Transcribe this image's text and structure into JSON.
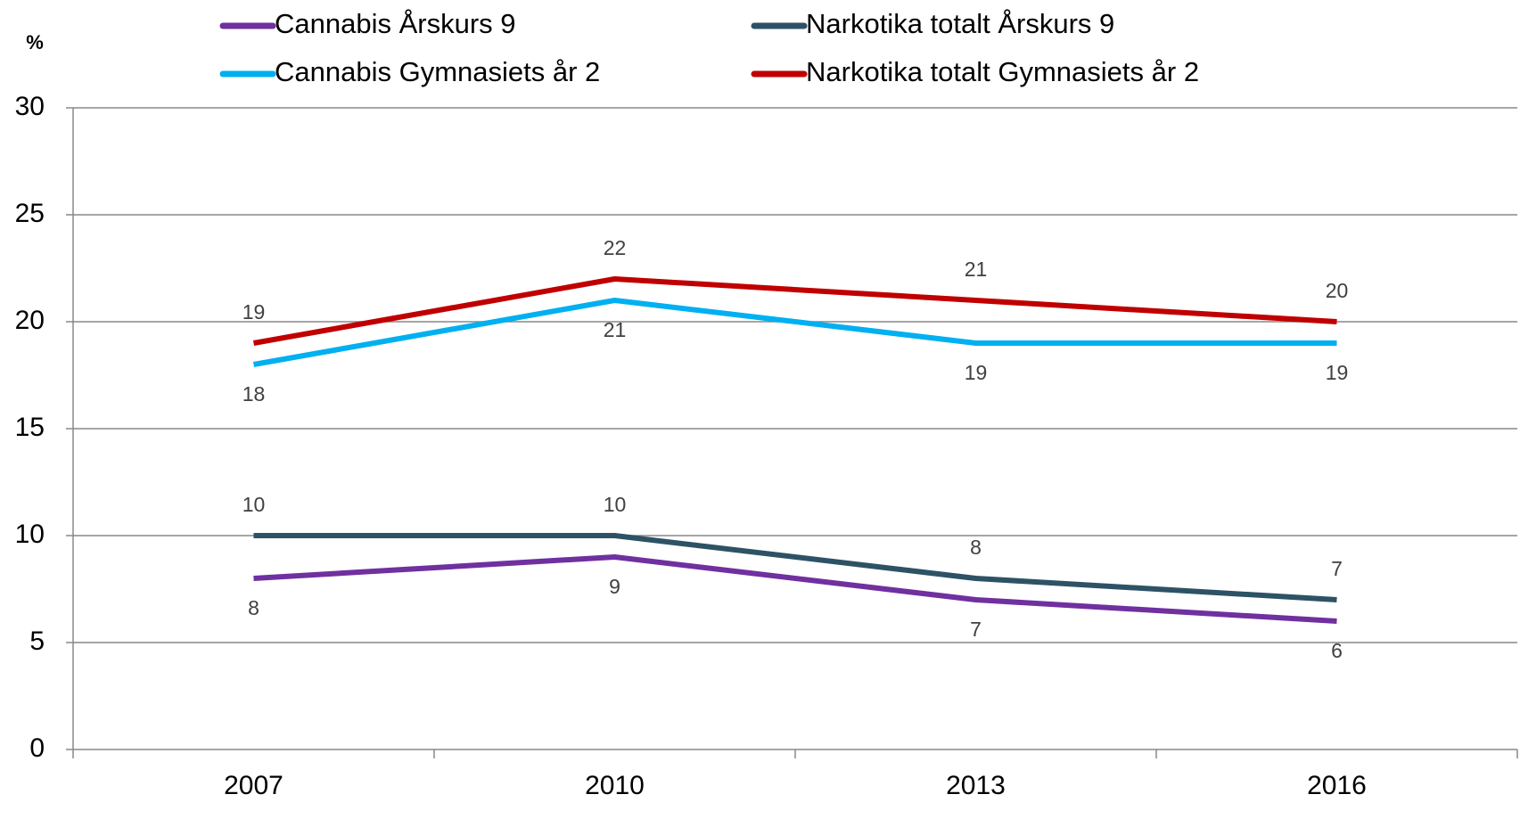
{
  "chart_data": {
    "type": "line",
    "y_unit_label": "%",
    "categories": [
      "2007",
      "2010",
      "2013",
      "2016"
    ],
    "series": [
      {
        "name": "Cannabis Årskurs 9",
        "color": "#7030a0",
        "values": [
          8,
          9,
          7,
          6
        ]
      },
      {
        "name": "Narkotika totalt Årskurs 9",
        "color": "#2e5265",
        "values": [
          10,
          10,
          8,
          7
        ]
      },
      {
        "name": "Cannabis Gymnasiets år 2",
        "color": "#00b0f0",
        "values": [
          18,
          21,
          19,
          19
        ]
      },
      {
        "name": "Narkotika totalt Gymnasiets år 2",
        "color": "#c00000",
        "values": [
          19,
          22,
          21,
          20
        ]
      }
    ],
    "ylim": [
      0,
      30
    ],
    "yticks": [
      0,
      5,
      10,
      15,
      20,
      25,
      30
    ],
    "grid": true,
    "legend": "top"
  }
}
